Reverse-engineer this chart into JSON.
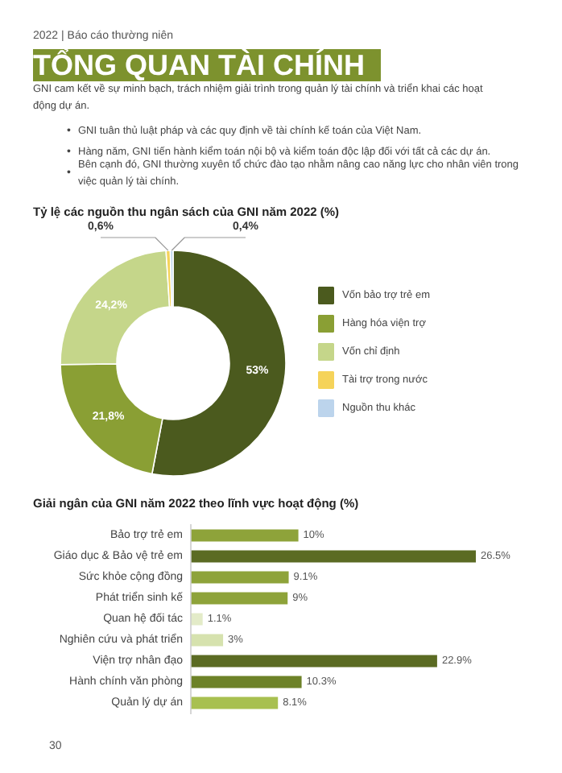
{
  "chart_data": [
    {
      "type": "other",
      "title": "TỔNG QUAN TÀI CHÍNH",
      "annotations": [
        "2022 | Báo cáo thường niên",
        "GNI cam kết về sự minh bạch, trách nhiệm giải trình trong quản lý tài chính và triển khai các hoạt động dự án.",
        "• GNI tuân thủ luật pháp và các quy định về tài chính kế toán của Việt Nam.",
        "• Hàng năm, GNI tiến hành kiểm toán nội bộ và kiểm toán độc lập đối với tất cả các dự án.",
        "• Bên cạnh đó, GNI thường xuyên tổ chức đào tạo nhằm nâng cao năng lực cho nhân viên trong việc quản lý tài chính."
      ]
    },
    {
      "type": "donut",
      "title": "Tỷ lệ các nguồn thu ngân sách của GNI năm 2022 (%)",
      "categories": [
        "Vốn bảo trợ trẻ em",
        "Hàng hóa viện trợ",
        "Vốn chỉ định",
        "Tài trợ trong nước",
        "Nguồn thu khác"
      ],
      "values": [
        53,
        21.8,
        24.2,
        0.6,
        0.4
      ],
      "colors": [
        "#4b5a1e",
        "#8a9f34",
        "#c5d68a",
        "#f5d35a",
        "#bcd4ec"
      ],
      "value_labels": [
        "53%",
        "21,8%",
        "24,2%",
        "0,6%",
        "0,4%"
      ],
      "legend": "right"
    },
    {
      "type": "bar",
      "orientation": "horizontal",
      "title": "Giải ngân của GNI năm 2022 theo lĩnh vực hoạt động (%)",
      "categories": [
        "Bảo trợ trẻ em",
        "Giáo dục & Bảo vệ trẻ em",
        "Sức khỏe cộng đồng",
        "Phát triển sinh kế",
        "Quan hệ đối tác",
        "Nghiên cứu và phát triển",
        "Viện trợ nhân đạo",
        "Hành chính văn phòng",
        "Quản lý dự án"
      ],
      "values": [
        10,
        26.5,
        9.1,
        9,
        1.1,
        3,
        22.9,
        10.3,
        8.1
      ],
      "colors": [
        "#8ea33a",
        "#5b6b23",
        "#8ea33a",
        "#8ea33a",
        "#e3ebc8",
        "#d6e2ae",
        "#5b6b23",
        "#6d8228",
        "#a8c050"
      ],
      "value_labels": [
        "10%",
        "26.5%",
        "9.1%",
        "9%",
        "1.1%",
        "3%",
        "22.9%",
        "10.3%",
        "8.1%"
      ],
      "annotations": [
        "30"
      ]
    }
  ]
}
